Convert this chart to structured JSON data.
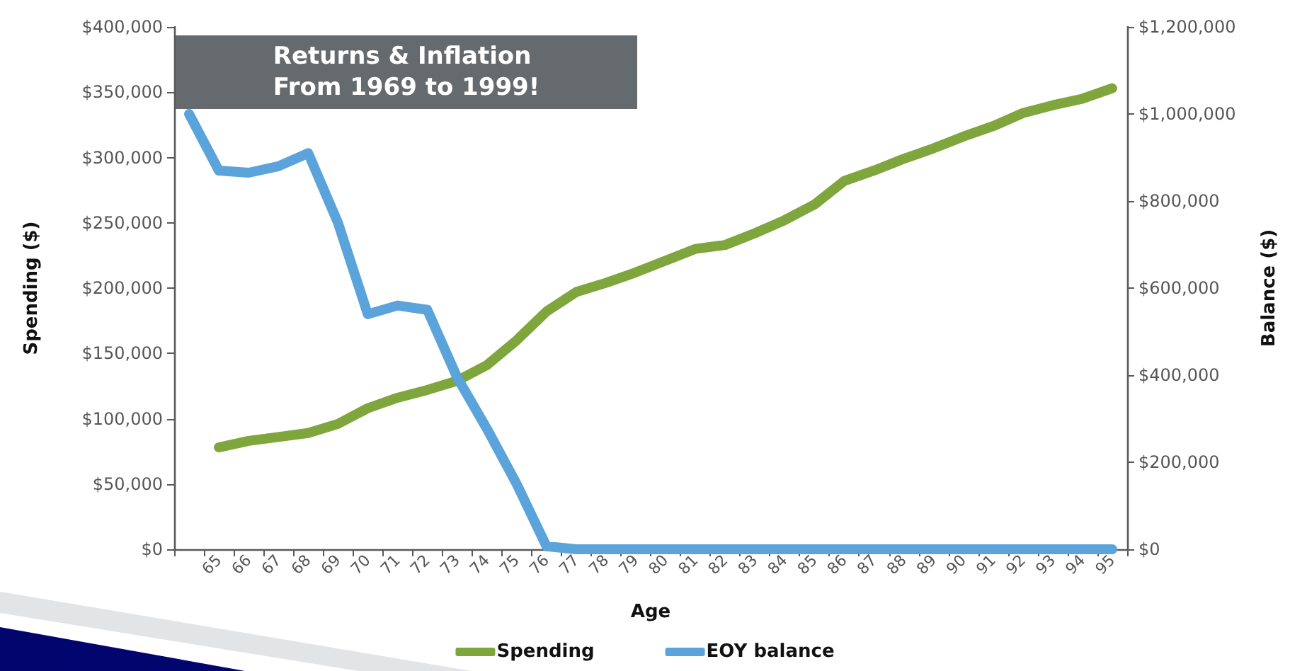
{
  "chart_data": {
    "type": "line",
    "title": "Returns & Inflation From 1969 to 1999!",
    "xlabel": "Age",
    "ylabel": "Spending ($)",
    "y2label": "Balance ($)",
    "categories": [
      null,
      "65",
      "66",
      "67",
      "68",
      "69",
      "70",
      "71",
      "72",
      "73",
      "74",
      "75",
      "76",
      "77",
      "78",
      "79",
      "80",
      "81",
      "82",
      "83",
      "84",
      "85",
      "86",
      "87",
      "88",
      "89",
      "90",
      "91",
      "92",
      "93",
      "94",
      "95"
    ],
    "series": [
      {
        "name": "Spending",
        "color": "#7fa63d",
        "values": [
          null,
          78000,
          83000,
          86000,
          89000,
          96000,
          108000,
          116000,
          122000,
          129000,
          141000,
          160000,
          182000,
          197000,
          204000,
          212000,
          221000,
          230000,
          233000,
          242000,
          252000,
          264000,
          282000,
          290000,
          299000,
          307000,
          316000,
          324000,
          334000,
          340000,
          345000,
          353000
        ]
      },
      {
        "name": "EOY balance",
        "color": "#5aa4db",
        "axis": "y2",
        "values": [
          1000000,
          870000,
          865000,
          880000,
          910000,
          750000,
          540000,
          560000,
          550000,
          395000,
          277000,
          150000,
          7000,
          0,
          0,
          0,
          0,
          0,
          0,
          0,
          0,
          0,
          0,
          0,
          0,
          0,
          0,
          0,
          0,
          0,
          0,
          0
        ]
      }
    ],
    "ylim": [
      0,
      400000
    ],
    "yticks": [
      {
        "value": 0,
        "label": "$0"
      },
      {
        "value": 50000,
        "label": "$50,000"
      },
      {
        "value": 100000,
        "label": "$100,000"
      },
      {
        "value": 150000,
        "label": "$150,000"
      },
      {
        "value": 200000,
        "label": "$200,000"
      },
      {
        "value": 250000,
        "label": "$250,000"
      },
      {
        "value": 300000,
        "label": "$300,000"
      },
      {
        "value": 350000,
        "label": "$350,000"
      },
      {
        "value": 400000,
        "label": "$400,000"
      }
    ],
    "y2lim": [
      0,
      1200000
    ],
    "y2ticks": [
      {
        "value": 0,
        "label": "$0"
      },
      {
        "value": 200000,
        "label": "$200,000"
      },
      {
        "value": 400000,
        "label": "$400,000"
      },
      {
        "value": 600000,
        "label": "$600,000"
      },
      {
        "value": 800000,
        "label": "$800,000"
      },
      {
        "value": 1000000,
        "label": "$1,000,000"
      },
      {
        "value": 1200000,
        "label": "$1,200,000"
      }
    ],
    "grid": false,
    "legend": "bottom",
    "marker": "none",
    "line_style": "solid"
  }
}
